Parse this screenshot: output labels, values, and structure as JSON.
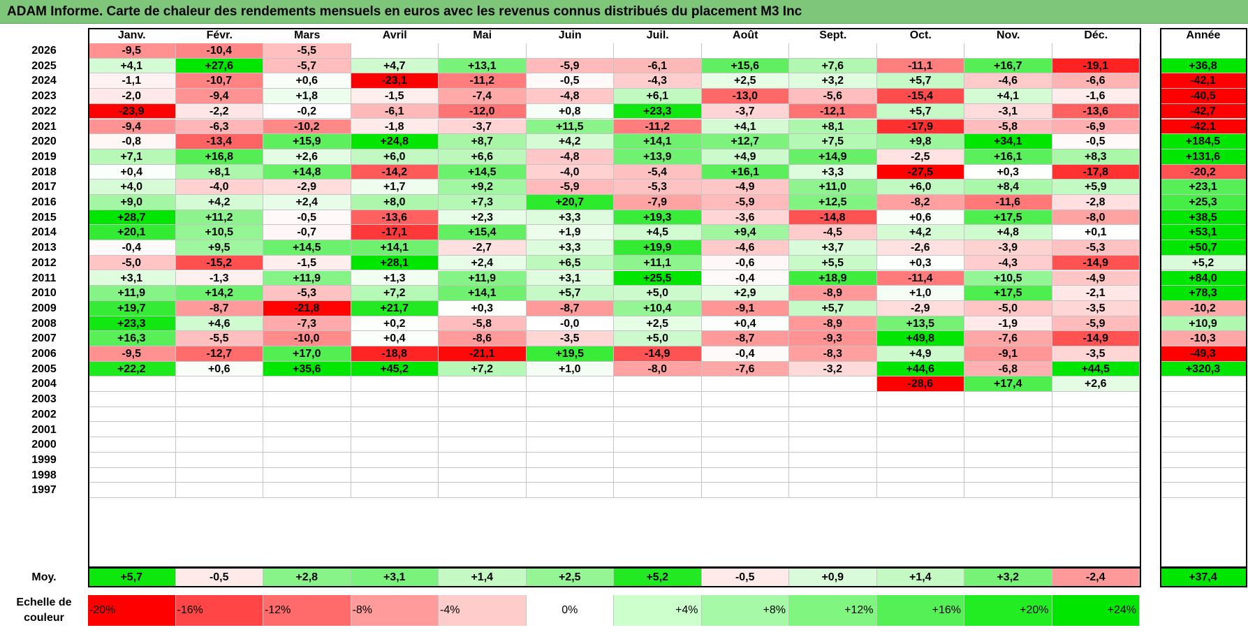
{
  "title": "ADAM Informe. Carte de chaleur des rendements mensuels en euros avec les revenus connus distribués du placement M3 Inc",
  "chart_data": {
    "type": "heatmap",
    "months": [
      "Janv.",
      "Févr.",
      "Mars",
      "Avril",
      "Mai",
      "Juin",
      "Juil.",
      "Août",
      "Sept.",
      "Oct.",
      "Nov.",
      "Déc."
    ],
    "year_header": "Année",
    "rows": [
      {
        "year": "2026",
        "m": [
          "-9,5",
          "-10,4",
          "-5,5",
          "",
          "",
          "",
          "",
          "",
          "",
          "",
          "",
          ""
        ],
        "y": ""
      },
      {
        "year": "2025",
        "m": [
          "+4,1",
          "+27,6",
          "-5,7",
          "+4,7",
          "+13,1",
          "-5,9",
          "-6,1",
          "+15,6",
          "+7,6",
          "-11,1",
          "+16,7",
          "-19,1"
        ],
        "y": "+36,8"
      },
      {
        "year": "2024",
        "m": [
          "-1,1",
          "-10,7",
          "+0,6",
          "-23,1",
          "-11,2",
          "-0,5",
          "-4,3",
          "+2,5",
          "+3,2",
          "+5,7",
          "-4,6",
          "-6,6"
        ],
        "y": "-42,1"
      },
      {
        "year": "2023",
        "m": [
          "-2,0",
          "-9,4",
          "+1,8",
          "-1,5",
          "-7,4",
          "-4,8",
          "+6,1",
          "-13,0",
          "-5,6",
          "-15,4",
          "+4,1",
          "-1,6"
        ],
        "y": "-40,5"
      },
      {
        "year": "2022",
        "m": [
          "-23,9",
          "-2,2",
          "-0,2",
          "-6,1",
          "-12,0",
          "+0,8",
          "+23,3",
          "-3,7",
          "-12,1",
          "+5,7",
          "-3,1",
          "-13,6"
        ],
        "y": "-42,7"
      },
      {
        "year": "2021",
        "m": [
          "-9,4",
          "-6,3",
          "-10,2",
          "-1,8",
          "-3,7",
          "+11,5",
          "-11,2",
          "+4,1",
          "+8,1",
          "-17,9",
          "-5,8",
          "-6,9"
        ],
        "y": "-42,1"
      },
      {
        "year": "2020",
        "m": [
          "-0,8",
          "-13,4",
          "+15,9",
          "+24,8",
          "+8,7",
          "+4,2",
          "+14,1",
          "+12,7",
          "+7,5",
          "+9,8",
          "+34,1",
          "-0,5"
        ],
        "y": "+184,5"
      },
      {
        "year": "2019",
        "m": [
          "+7,1",
          "+16,8",
          "+2,6",
          "+6,0",
          "+6,6",
          "-4,8",
          "+13,9",
          "+4,9",
          "+14,9",
          "-2,5",
          "+16,1",
          "+8,3"
        ],
        "y": "+131,6"
      },
      {
        "year": "2018",
        "m": [
          "+0,4",
          "+8,1",
          "+14,8",
          "-14,2",
          "+14,5",
          "-4,0",
          "-5,4",
          "+16,1",
          "+3,3",
          "-27,5",
          "+0,3",
          "-17,8"
        ],
        "y": "-20,2"
      },
      {
        "year": "2017",
        "m": [
          "+4,0",
          "-4,0",
          "-2,9",
          "+1,7",
          "+9,2",
          "-5,9",
          "-5,3",
          "-4,9",
          "+11,0",
          "+6,0",
          "+8,4",
          "+5,9"
        ],
        "y": "+23,1"
      },
      {
        "year": "2016",
        "m": [
          "+9,0",
          "+4,2",
          "+2,4",
          "+8,0",
          "+7,3",
          "+20,7",
          "-7,9",
          "-5,9",
          "+12,5",
          "-8,2",
          "-11,6",
          "-2,8"
        ],
        "y": "+25,3"
      },
      {
        "year": "2015",
        "m": [
          "+28,7",
          "+11,2",
          "-0,5",
          "-13,6",
          "+2,3",
          "+3,3",
          "+19,3",
          "-3,6",
          "-14,8",
          "+0,6",
          "+17,5",
          "-8,0"
        ],
        "y": "+38,5"
      },
      {
        "year": "2014",
        "m": [
          "+20,1",
          "+10,5",
          "-0,7",
          "-17,1",
          "+15,4",
          "+1,9",
          "+4,5",
          "+9,4",
          "-4,5",
          "+4,2",
          "+4,8",
          "+0,1"
        ],
        "y": "+53,1"
      },
      {
        "year": "2013",
        "m": [
          "-0,4",
          "+9,5",
          "+14,5",
          "+14,1",
          "-2,7",
          "+3,3",
          "+19,9",
          "-4,6",
          "+3,7",
          "-2,6",
          "-3,9",
          "-5,3"
        ],
        "y": "+50,7"
      },
      {
        "year": "2012",
        "m": [
          "-5,0",
          "-15,2",
          "-1,5",
          "+28,1",
          "+2,4",
          "+6,5",
          "+11,1",
          "-0,6",
          "+5,5",
          "+0,3",
          "-4,3",
          "-14,9"
        ],
        "y": "+5,2"
      },
      {
        "year": "2011",
        "m": [
          "+3,1",
          "-1,3",
          "+11,9",
          "+1,3",
          "+11,9",
          "+3,1",
          "+25,5",
          "-0,4",
          "+18,9",
          "-11,4",
          "+10,5",
          "-4,9"
        ],
        "y": "+84,0"
      },
      {
        "year": "2010",
        "m": [
          "+11,9",
          "+14,2",
          "-5,3",
          "+7,2",
          "+14,1",
          "+5,7",
          "+5,0",
          "+2,9",
          "-8,9",
          "+1,0",
          "+17,5",
          "-2,1"
        ],
        "y": "+78,3"
      },
      {
        "year": "2009",
        "m": [
          "+19,7",
          "-8,7",
          "-21,8",
          "+21,7",
          "+0,3",
          "-8,7",
          "+10,4",
          "-9,1",
          "+5,7",
          "-2,9",
          "-5,0",
          "-3,5"
        ],
        "y": "-10,2"
      },
      {
        "year": "2008",
        "m": [
          "+23,3",
          "+4,6",
          "-7,3",
          "+0,2",
          "-5,8",
          "-0,0",
          "+2,5",
          "+0,4",
          "-8,9",
          "+13,5",
          "-1,9",
          "-5,9"
        ],
        "y": "+10,9"
      },
      {
        "year": "2007",
        "m": [
          "+16,3",
          "-5,5",
          "-10,0",
          "+0,4",
          "-8,6",
          "-3,5",
          "+5,0",
          "-8,7",
          "-9,3",
          "+49,8",
          "-7,6",
          "-14,9"
        ],
        "y": "-10,3"
      },
      {
        "year": "2006",
        "m": [
          "-9,5",
          "-12,7",
          "+17,0",
          "-18,8",
          "-21,1",
          "+19,5",
          "-14,9",
          "-0,4",
          "-8,3",
          "+4,9",
          "-9,1",
          "-3,5"
        ],
        "y": "-49,3"
      },
      {
        "year": "2005",
        "m": [
          "+22,2",
          "+0,6",
          "+35,6",
          "+45,2",
          "+7,2",
          "+1,0",
          "-8,0",
          "-7,6",
          "-3,2",
          "+44,6",
          "-6,8",
          "+44,5"
        ],
        "y": "+320,3"
      },
      {
        "year": "2004",
        "m": [
          "",
          "",
          "",
          "",
          "",
          "",
          "",
          "",
          "",
          "-28,6",
          "+17,4",
          "+2,6"
        ],
        "y": ""
      },
      {
        "year": "2003",
        "m": [
          "",
          "",
          "",
          "",
          "",
          "",
          "",
          "",
          "",
          "",
          "",
          ""
        ],
        "y": ""
      },
      {
        "year": "2002",
        "m": [
          "",
          "",
          "",
          "",
          "",
          "",
          "",
          "",
          "",
          "",
          "",
          ""
        ],
        "y": ""
      },
      {
        "year": "2001",
        "m": [
          "",
          "",
          "",
          "",
          "",
          "",
          "",
          "",
          "",
          "",
          "",
          ""
        ],
        "y": ""
      },
      {
        "year": "2000",
        "m": [
          "",
          "",
          "",
          "",
          "",
          "",
          "",
          "",
          "",
          "",
          "",
          ""
        ],
        "y": ""
      },
      {
        "year": "1999",
        "m": [
          "",
          "",
          "",
          "",
          "",
          "",
          "",
          "",
          "",
          "",
          "",
          ""
        ],
        "y": ""
      },
      {
        "year": "1998",
        "m": [
          "",
          "",
          "",
          "",
          "",
          "",
          "",
          "",
          "",
          "",
          "",
          ""
        ],
        "y": ""
      },
      {
        "year": "1997",
        "m": [
          "",
          "",
          "",
          "",
          "",
          "",
          "",
          "",
          "",
          "",
          "",
          ""
        ],
        "y": ""
      }
    ],
    "average": {
      "label": "Moy.",
      "m": [
        "+5,7",
        "-0,5",
        "+2,8",
        "+3,1",
        "+1,4",
        "+2,5",
        "+5,2",
        "-0,5",
        "+0,9",
        "+1,4",
        "+3,2",
        "-2,4"
      ],
      "y": "+37,4"
    },
    "scale": {
      "label": "Echelle de couleur",
      "steps": [
        "-20%",
        "-16%",
        "-12%",
        "-8%",
        "-4%",
        "0%",
        "+4%",
        "+8%",
        "+12%",
        "+16%",
        "+20%",
        "+24%"
      ],
      "colors": [
        "#ff0000",
        "#ff4545",
        "#ff6b6b",
        "#ff9b9b",
        "#ffcccc",
        "#ffffff",
        "#ccffcc",
        "#a6f9a6",
        "#80f580",
        "#55f055",
        "#22ec22",
        "#00e600"
      ]
    }
  }
}
